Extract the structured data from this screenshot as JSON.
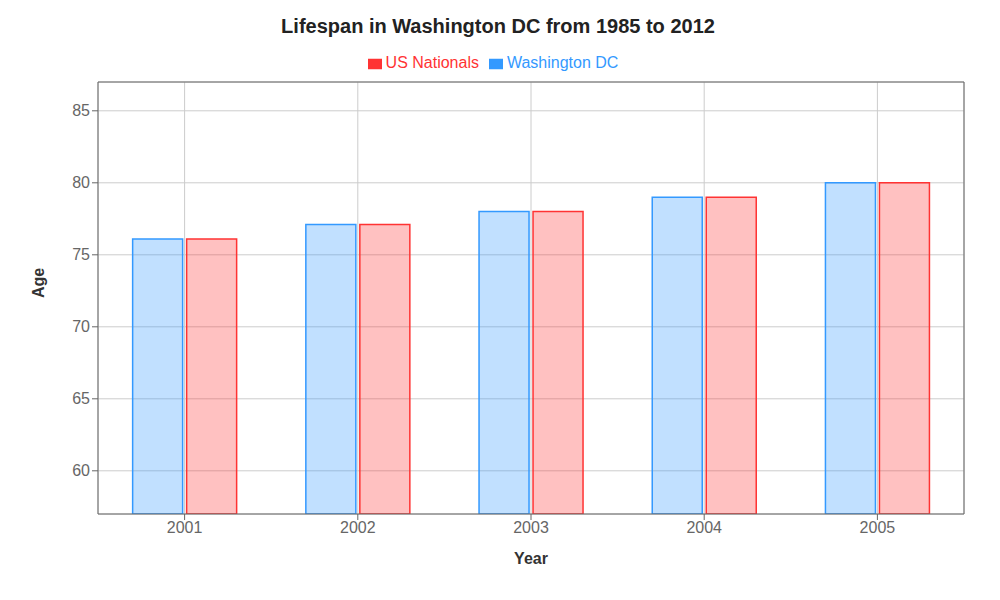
{
  "chart_data": {
    "type": "bar",
    "title": "Lifespan in Washington DC from 1985 to 2012",
    "xlabel": "Year",
    "ylabel": "Age",
    "categories": [
      "2001",
      "2002",
      "2003",
      "2004",
      "2005"
    ],
    "series": [
      {
        "name": "Washington DC",
        "color": "#3399ff",
        "values": [
          76.1,
          77.1,
          78.0,
          79.0,
          80.0
        ]
      },
      {
        "name": "US Nationals",
        "color": "#ff3333",
        "values": [
          76.1,
          77.1,
          78.0,
          79.0,
          80.0
        ]
      }
    ],
    "ylim": [
      57,
      87
    ],
    "yticks": [
      60,
      65,
      70,
      75,
      80,
      85
    ],
    "grid": true,
    "legend": "top"
  }
}
